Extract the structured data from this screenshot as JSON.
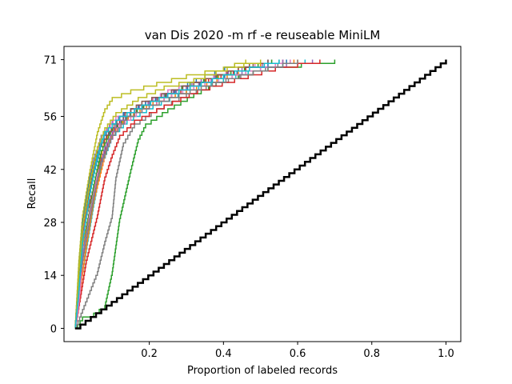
{
  "chart_data": {
    "type": "line",
    "title": "van Dis 2020 -m rf -e reuseable MiniLM",
    "xlabel": "Proportion of labeled records",
    "ylabel": "Recall",
    "xlim": [
      -0.03,
      1.04
    ],
    "ylim": [
      -3.5,
      74.5
    ],
    "x_ticks": [
      0.2,
      0.4,
      0.6,
      0.8,
      1.0
    ],
    "x_tick_labels": [
      "0.2",
      "0.4",
      "0.6",
      "0.8",
      "1.0"
    ],
    "y_ticks": [
      0,
      14,
      28,
      42,
      56,
      71
    ],
    "y_tick_labels": [
      "0",
      "14",
      "28",
      "42",
      "56",
      "71"
    ],
    "total_relevant": 71,
    "grid": false,
    "legend": "none",
    "baseline": {
      "description_color": "#000000",
      "x": [
        0.0,
        1.0
      ],
      "y": [
        0,
        71
      ]
    },
    "series_colors": [
      "#1f77b4",
      "#ff7f0e",
      "#2ca02c",
      "#d62728",
      "#9467bd",
      "#8c564b",
      "#e377c2",
      "#7f7f7f",
      "#bcbd22",
      "#17becf"
    ],
    "series": [
      {
        "color": "#1f77b4",
        "points": [
          [
            0.0,
            0
          ],
          [
            0.01,
            12
          ],
          [
            0.02,
            24
          ],
          [
            0.03,
            33
          ],
          [
            0.05,
            41
          ],
          [
            0.07,
            49
          ],
          [
            0.1,
            53
          ],
          [
            0.13,
            56
          ],
          [
            0.2,
            60
          ],
          [
            0.28,
            64
          ],
          [
            0.35,
            67
          ],
          [
            0.43,
            70
          ],
          [
            0.52,
            71
          ]
        ]
      },
      {
        "color": "#ff7f0e",
        "points": [
          [
            0.0,
            0
          ],
          [
            0.01,
            10
          ],
          [
            0.02,
            22
          ],
          [
            0.04,
            32
          ],
          [
            0.06,
            42
          ],
          [
            0.08,
            50
          ],
          [
            0.11,
            54
          ],
          [
            0.16,
            57
          ],
          [
            0.24,
            61
          ],
          [
            0.32,
            65
          ],
          [
            0.42,
            68
          ],
          [
            0.5,
            70
          ],
          [
            0.6,
            71
          ]
        ]
      },
      {
        "color": "#2ca02c",
        "points": [
          [
            0.0,
            0
          ],
          [
            0.02,
            3
          ],
          [
            0.05,
            4
          ],
          [
            0.08,
            6
          ],
          [
            0.1,
            15
          ],
          [
            0.12,
            29
          ],
          [
            0.15,
            42
          ],
          [
            0.17,
            50
          ],
          [
            0.19,
            54
          ],
          [
            0.25,
            58
          ],
          [
            0.32,
            62
          ],
          [
            0.4,
            66
          ],
          [
            0.52,
            69
          ],
          [
            0.7,
            71
          ]
        ]
      },
      {
        "color": "#d62728",
        "points": [
          [
            0.0,
            0
          ],
          [
            0.01,
            14
          ],
          [
            0.02,
            26
          ],
          [
            0.04,
            34
          ],
          [
            0.07,
            44
          ],
          [
            0.09,
            50
          ],
          [
            0.12,
            55
          ],
          [
            0.18,
            58
          ],
          [
            0.26,
            62
          ],
          [
            0.36,
            66
          ],
          [
            0.46,
            69
          ],
          [
            0.56,
            71
          ]
        ]
      },
      {
        "color": "#9467bd",
        "points": [
          [
            0.0,
            0
          ],
          [
            0.01,
            16
          ],
          [
            0.02,
            27
          ],
          [
            0.03,
            36
          ],
          [
            0.05,
            45
          ],
          [
            0.07,
            51
          ],
          [
            0.1,
            55
          ],
          [
            0.15,
            58
          ],
          [
            0.22,
            61
          ],
          [
            0.3,
            64
          ],
          [
            0.4,
            67
          ],
          [
            0.5,
            69
          ],
          [
            0.64,
            71
          ]
        ]
      },
      {
        "color": "#8c564b",
        "points": [
          [
            0.0,
            0
          ],
          [
            0.01,
            11
          ],
          [
            0.03,
            25
          ],
          [
            0.05,
            36
          ],
          [
            0.07,
            45
          ],
          [
            0.1,
            52
          ],
          [
            0.13,
            56
          ],
          [
            0.2,
            60
          ],
          [
            0.29,
            64
          ],
          [
            0.38,
            67
          ],
          [
            0.47,
            70
          ],
          [
            0.55,
            71
          ]
        ]
      },
      {
        "color": "#e377c2",
        "points": [
          [
            0.0,
            0
          ],
          [
            0.01,
            13
          ],
          [
            0.02,
            25
          ],
          [
            0.04,
            38
          ],
          [
            0.06,
            47
          ],
          [
            0.08,
            52
          ],
          [
            0.11,
            56
          ],
          [
            0.17,
            59
          ],
          [
            0.25,
            63
          ],
          [
            0.34,
            66
          ],
          [
            0.44,
            69
          ],
          [
            0.53,
            71
          ]
        ]
      },
      {
        "color": "#7f7f7f",
        "points": [
          [
            0.0,
            0
          ],
          [
            0.02,
            5
          ],
          [
            0.04,
            10
          ],
          [
            0.06,
            15
          ],
          [
            0.08,
            23
          ],
          [
            0.1,
            30
          ],
          [
            0.11,
            40
          ],
          [
            0.13,
            49
          ],
          [
            0.16,
            54
          ],
          [
            0.22,
            58
          ],
          [
            0.3,
            62
          ],
          [
            0.38,
            65
          ],
          [
            0.48,
            68
          ],
          [
            0.58,
            71
          ]
        ]
      },
      {
        "color": "#bcbd22",
        "points": [
          [
            0.0,
            0
          ],
          [
            0.01,
            18
          ],
          [
            0.02,
            30
          ],
          [
            0.04,
            42
          ],
          [
            0.06,
            52
          ],
          [
            0.08,
            58
          ],
          [
            0.1,
            61
          ],
          [
            0.15,
            63
          ],
          [
            0.22,
            65
          ],
          [
            0.3,
            67
          ],
          [
            0.4,
            69
          ],
          [
            0.46,
            71
          ]
        ]
      },
      {
        "color": "#17becf",
        "points": [
          [
            0.0,
            0
          ],
          [
            0.01,
            9
          ],
          [
            0.03,
            21
          ],
          [
            0.05,
            33
          ],
          [
            0.07,
            43
          ],
          [
            0.1,
            51
          ],
          [
            0.14,
            55
          ],
          [
            0.21,
            59
          ],
          [
            0.3,
            63
          ],
          [
            0.4,
            66
          ],
          [
            0.5,
            69
          ],
          [
            0.62,
            71
          ]
        ]
      },
      {
        "color": "#1f77b4",
        "points": [
          [
            0.0,
            0
          ],
          [
            0.01,
            15
          ],
          [
            0.02,
            28
          ],
          [
            0.04,
            40
          ],
          [
            0.06,
            48
          ],
          [
            0.09,
            53
          ],
          [
            0.13,
            57
          ],
          [
            0.19,
            60
          ],
          [
            0.27,
            63
          ],
          [
            0.37,
            66
          ],
          [
            0.47,
            69
          ],
          [
            0.57,
            71
          ]
        ]
      },
      {
        "color": "#ff7f0e",
        "points": [
          [
            0.0,
            0
          ],
          [
            0.01,
            8
          ],
          [
            0.03,
            22
          ],
          [
            0.05,
            34
          ],
          [
            0.08,
            46
          ],
          [
            0.1,
            52
          ],
          [
            0.14,
            56
          ],
          [
            0.21,
            60
          ],
          [
            0.3,
            63
          ],
          [
            0.41,
            67
          ],
          [
            0.5,
            70
          ],
          [
            0.59,
            71
          ]
        ]
      },
      {
        "color": "#2ca02c",
        "points": [
          [
            0.0,
            0
          ],
          [
            0.01,
            12
          ],
          [
            0.03,
            26
          ],
          [
            0.05,
            38
          ],
          [
            0.07,
            47
          ],
          [
            0.1,
            53
          ],
          [
            0.15,
            57
          ],
          [
            0.22,
            61
          ],
          [
            0.31,
            65
          ],
          [
            0.42,
            68
          ],
          [
            0.53,
            71
          ]
        ]
      },
      {
        "color": "#d62728",
        "points": [
          [
            0.0,
            0
          ],
          [
            0.01,
            6
          ],
          [
            0.03,
            18
          ],
          [
            0.06,
            30
          ],
          [
            0.08,
            40
          ],
          [
            0.1,
            46
          ],
          [
            0.12,
            51
          ],
          [
            0.16,
            55
          ],
          [
            0.24,
            59
          ],
          [
            0.33,
            63
          ],
          [
            0.43,
            66
          ],
          [
            0.54,
            69
          ],
          [
            0.66,
            71
          ]
        ]
      },
      {
        "color": "#9467bd",
        "points": [
          [
            0.0,
            0
          ],
          [
            0.01,
            10
          ],
          [
            0.02,
            20
          ],
          [
            0.04,
            30
          ],
          [
            0.06,
            40
          ],
          [
            0.08,
            48
          ],
          [
            0.11,
            54
          ],
          [
            0.16,
            58
          ],
          [
            0.24,
            62
          ],
          [
            0.34,
            66
          ],
          [
            0.45,
            69
          ],
          [
            0.56,
            71
          ]
        ]
      },
      {
        "color": "#8c564b",
        "points": [
          [
            0.0,
            0
          ],
          [
            0.01,
            14
          ],
          [
            0.02,
            26
          ],
          [
            0.04,
            38
          ],
          [
            0.06,
            47
          ],
          [
            0.09,
            52
          ],
          [
            0.12,
            56
          ],
          [
            0.18,
            60
          ],
          [
            0.26,
            63
          ],
          [
            0.35,
            66
          ],
          [
            0.44,
            69
          ],
          [
            0.52,
            71
          ]
        ]
      },
      {
        "color": "#e377c2",
        "points": [
          [
            0.0,
            0
          ],
          [
            0.01,
            7
          ],
          [
            0.02,
            18
          ],
          [
            0.04,
            31
          ],
          [
            0.06,
            41
          ],
          [
            0.09,
            49
          ],
          [
            0.12,
            54
          ],
          [
            0.18,
            58
          ],
          [
            0.26,
            62
          ],
          [
            0.35,
            65
          ],
          [
            0.46,
            68
          ],
          [
            0.58,
            71
          ]
        ]
      },
      {
        "color": "#7f7f7f",
        "points": [
          [
            0.0,
            0
          ],
          [
            0.01,
            12
          ],
          [
            0.03,
            24
          ],
          [
            0.05,
            35
          ],
          [
            0.07,
            44
          ],
          [
            0.1,
            51
          ],
          [
            0.14,
            56
          ],
          [
            0.2,
            59
          ],
          [
            0.28,
            62
          ],
          [
            0.37,
            65
          ],
          [
            0.48,
            68
          ],
          [
            0.6,
            71
          ]
        ]
      },
      {
        "color": "#bcbd22",
        "points": [
          [
            0.0,
            0
          ],
          [
            0.01,
            15
          ],
          [
            0.02,
            27
          ],
          [
            0.04,
            39
          ],
          [
            0.06,
            48
          ],
          [
            0.08,
            53
          ],
          [
            0.11,
            57
          ],
          [
            0.17,
            61
          ],
          [
            0.24,
            64
          ],
          [
            0.32,
            66
          ],
          [
            0.41,
            69
          ],
          [
            0.5,
            71
          ]
        ]
      },
      {
        "color": "#17becf",
        "points": [
          [
            0.0,
            0
          ],
          [
            0.01,
            10
          ],
          [
            0.02,
            23
          ],
          [
            0.04,
            36
          ],
          [
            0.06,
            46
          ],
          [
            0.08,
            52
          ],
          [
            0.12,
            56
          ],
          [
            0.18,
            59
          ],
          [
            0.25,
            62
          ],
          [
            0.34,
            65
          ],
          [
            0.43,
            68
          ],
          [
            0.55,
            71
          ]
        ]
      }
    ]
  }
}
